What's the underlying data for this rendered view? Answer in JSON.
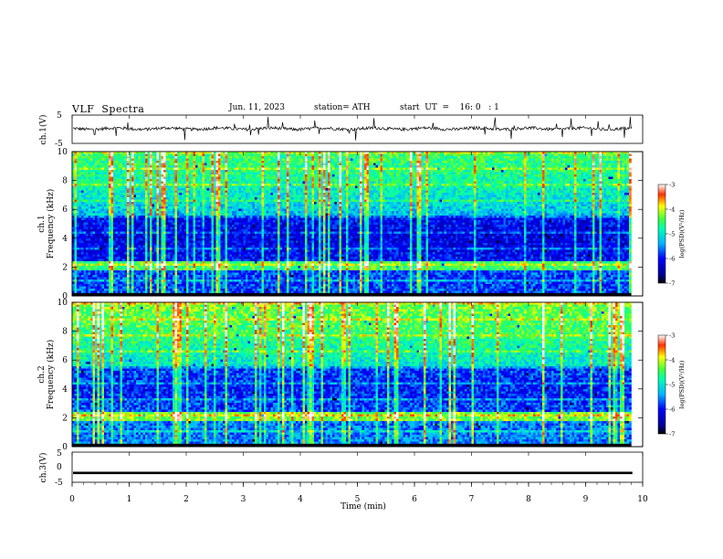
{
  "header": {
    "title": "VLF  Spectra",
    "date": "Jun. 11, 2023",
    "station": "station= ATH",
    "start": "start  UT  =    16: 0   : 1"
  },
  "chart_data": [
    {
      "type": "line",
      "panel": "ch1-waveform",
      "ylabel": "ch.1(V)",
      "ylim": [
        -5,
        5
      ],
      "yticks": [
        "5",
        "-5"
      ],
      "xlim": [
        0,
        10
      ],
      "data_end_min": 9.82
    },
    {
      "type": "heatmap",
      "panel": "ch1-spectrogram",
      "ylabel_line1": "ch.1",
      "ylabel_line2": "Frequency (kHz)",
      "ylim": [
        0,
        10
      ],
      "yticks": [
        "0",
        "2",
        "4",
        "6",
        "8",
        "10"
      ],
      "xlim": [
        0,
        10
      ],
      "colorbar_label": "log(PSD)(V²/Hz)",
      "colorbar_ticks": [
        "-3",
        "-4",
        "-5",
        "-6",
        "-7"
      ],
      "colorbar_range": [
        -7,
        -3
      ]
    },
    {
      "type": "heatmap",
      "panel": "ch2-spectrogram",
      "ylabel_line1": "ch.2",
      "ylabel_line2": "Frequency (kHz)",
      "ylim": [
        0,
        10
      ],
      "yticks": [
        "0",
        "2",
        "4",
        "6",
        "8",
        "10"
      ],
      "xlim": [
        0,
        10
      ],
      "colorbar_label": "log(PSD)(V²/Hz)",
      "colorbar_ticks": [
        "-3",
        "-4",
        "-5",
        "-6",
        "-7"
      ],
      "colorbar_range": [
        -7,
        -3
      ]
    },
    {
      "type": "line",
      "panel": "ch3-waveform",
      "ylabel": "ch.3(V)",
      "ylim": [
        -5,
        5
      ],
      "yticks": [
        "5",
        "0",
        "-5"
      ],
      "xlim": [
        0,
        10
      ],
      "xlabel": "Time  (min)",
      "xticks": [
        "0",
        "1",
        "2",
        "3",
        "4",
        "5",
        "6",
        "7",
        "8",
        "9",
        "10"
      ]
    }
  ]
}
